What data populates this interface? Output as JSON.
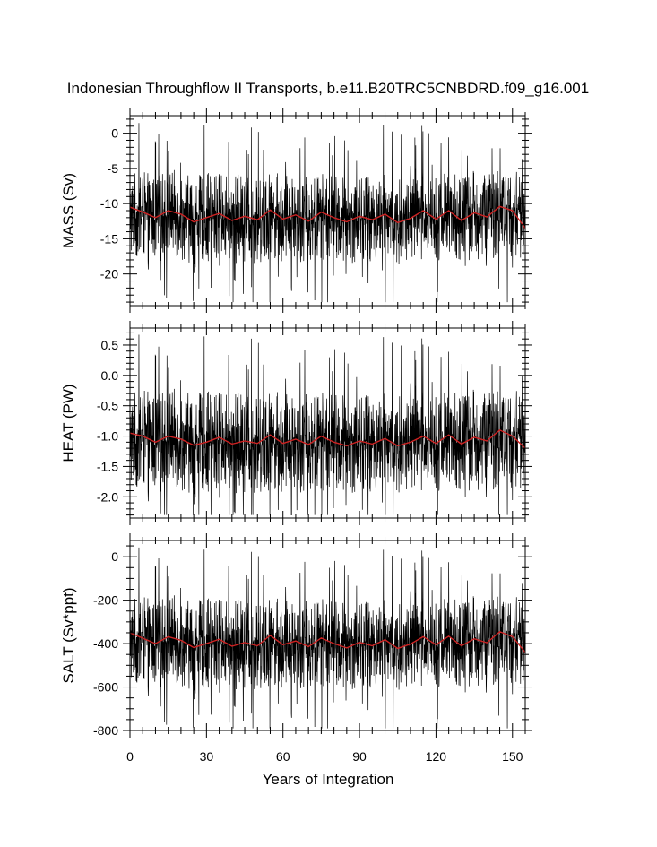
{
  "title": "Indonesian Throughflow II Transports, b.e11.B20TRC5CNBDRD.f09_g16.001",
  "colors": {
    "raw": "#000000",
    "smoothed": "#cc2222"
  },
  "chart_data": [
    {
      "type": "line",
      "panel": "mass",
      "ylabel": "MASS (Sv)",
      "xlabel": "",
      "xlim": [
        0,
        155
      ],
      "ylim": [
        -24.5,
        2.5
      ],
      "xticks": [
        0,
        30,
        60,
        90,
        120,
        150
      ],
      "yticks": [
        0,
        -5,
        -10,
        -15,
        -20
      ],
      "ytick_labels": [
        "0",
        "-5",
        "-10",
        "-15",
        "-20"
      ],
      "yminor_step": 1,
      "baseline": -12,
      "spike_max": 2,
      "spike_min": -24,
      "x": [
        0,
        5,
        10,
        15,
        20,
        25,
        30,
        35,
        40,
        45,
        50,
        55,
        60,
        65,
        70,
        75,
        80,
        85,
        90,
        95,
        100,
        105,
        110,
        115,
        120,
        125,
        130,
        135,
        140,
        145,
        150,
        155
      ],
      "series": [
        {
          "values": [
            -11.5,
            -11.8,
            -12.2,
            -11.4,
            -11.7,
            -12.4,
            -12.0,
            -11.6,
            -12.3,
            -11.9,
            -12.5,
            -11.3,
            -12.1,
            -11.8,
            -12.4,
            -11.6,
            -12.0,
            -12.6,
            -11.9,
            -12.2,
            -11.7,
            -12.8,
            -12.0,
            -11.5,
            -12.1,
            -11.4,
            -12.3,
            -11.6,
            -12.0,
            -10.9,
            -11.4,
            -11.8
          ]
        },
        {
          "values": [
            -10.5,
            -11.2,
            -12.0,
            -11.0,
            -11.5,
            -12.6,
            -12.0,
            -11.4,
            -12.4,
            -11.8,
            -12.3,
            -10.9,
            -12.2,
            -11.6,
            -12.5,
            -11.2,
            -12.0,
            -12.6,
            -11.8,
            -12.3,
            -11.5,
            -12.7,
            -12.1,
            -11.0,
            -12.2,
            -11.0,
            -12.4,
            -11.3,
            -11.9,
            -10.4,
            -11.0,
            -13.5
          ]
        }
      ]
    },
    {
      "type": "line",
      "panel": "heat",
      "ylabel": "HEAT (PW)",
      "xlabel": "",
      "xlim": [
        0,
        155
      ],
      "ylim": [
        -2.35,
        0.78
      ],
      "xticks": [
        0,
        30,
        60,
        90,
        120,
        150
      ],
      "yticks": [
        0.5,
        0.0,
        -0.5,
        -1.0,
        -1.5,
        -2.0
      ],
      "ytick_labels": [
        "0.5",
        "0.0",
        "-0.5",
        "-1.0",
        "-1.5",
        "-2.0"
      ],
      "yminor_step": 0.1,
      "baseline": -1.1,
      "spike_max": 0.75,
      "spike_min": -2.3,
      "x": [
        0,
        5,
        10,
        15,
        20,
        25,
        30,
        35,
        40,
        45,
        50,
        55,
        60,
        65,
        70,
        75,
        80,
        85,
        90,
        95,
        100,
        105,
        110,
        115,
        120,
        125,
        130,
        135,
        140,
        145,
        150,
        155
      ],
      "series": [
        {
          "values": [
            -1.05,
            -1.08,
            -1.12,
            -1.04,
            -1.07,
            -1.13,
            -1.1,
            -1.06,
            -1.12,
            -1.09,
            -1.14,
            -1.03,
            -1.11,
            -1.08,
            -1.13,
            -1.06,
            -1.1,
            -1.15,
            -1.09,
            -1.12,
            -1.07,
            -1.16,
            -1.1,
            -1.05,
            -1.11,
            -1.04,
            -1.12,
            -1.06,
            -1.1,
            -1.0,
            -1.04,
            -1.08
          ]
        },
        {
          "values": [
            -0.95,
            -1.0,
            -1.1,
            -1.0,
            -1.05,
            -1.15,
            -1.1,
            -1.02,
            -1.13,
            -1.08,
            -1.12,
            -0.98,
            -1.12,
            -1.05,
            -1.14,
            -1.0,
            -1.1,
            -1.16,
            -1.08,
            -1.13,
            -1.04,
            -1.16,
            -1.1,
            -1.0,
            -1.12,
            -0.98,
            -1.13,
            -1.02,
            -1.08,
            -0.9,
            -1.0,
            -1.2
          ]
        }
      ]
    },
    {
      "type": "line",
      "panel": "salt",
      "ylabel": "SALT (Sv*ppt)",
      "xlabel": "Years of Integration",
      "xlim": [
        0,
        155
      ],
      "ylim": [
        -800,
        75
      ],
      "xticks": [
        0,
        30,
        60,
        90,
        120,
        150
      ],
      "xtick_labels": [
        "0",
        "30",
        "60",
        "90",
        "120",
        "150"
      ],
      "yticks": [
        0,
        -200,
        -400,
        -600,
        -800
      ],
      "ytick_labels": [
        "0",
        "-200",
        "-400",
        "-600",
        "-800"
      ],
      "yminor_step": 50,
      "baseline": -400,
      "spike_max": 60,
      "spike_min": -790,
      "x": [
        0,
        5,
        10,
        15,
        20,
        25,
        30,
        35,
        40,
        45,
        50,
        55,
        60,
        65,
        70,
        75,
        80,
        85,
        90,
        95,
        100,
        105,
        110,
        115,
        120,
        125,
        130,
        135,
        140,
        145,
        150,
        155
      ],
      "series": [
        {
          "values": [
            -385,
            -392,
            -405,
            -380,
            -390,
            -410,
            -400,
            -388,
            -408,
            -396,
            -414,
            -378,
            -402,
            -393,
            -410,
            -386,
            -400,
            -418,
            -396,
            -406,
            -390,
            -422,
            -400,
            -384,
            -403,
            -380,
            -408,
            -386,
            -400,
            -365,
            -380,
            -392
          ]
        },
        {
          "values": [
            -350,
            -375,
            -400,
            -368,
            -385,
            -418,
            -400,
            -380,
            -412,
            -395,
            -410,
            -362,
            -405,
            -388,
            -414,
            -374,
            -400,
            -420,
            -394,
            -410,
            -382,
            -422,
            -402,
            -368,
            -405,
            -366,
            -410,
            -378,
            -396,
            -345,
            -368,
            -440
          ]
        }
      ]
    }
  ]
}
